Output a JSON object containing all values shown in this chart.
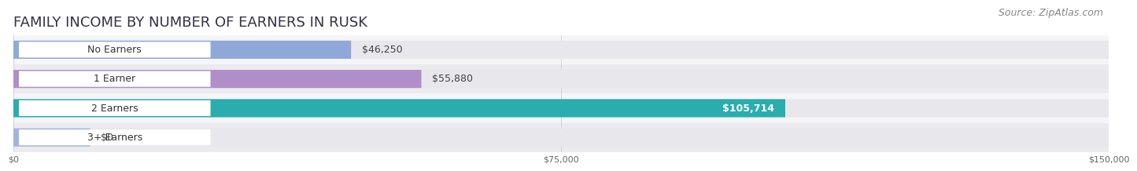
{
  "title": "FAMILY INCOME BY NUMBER OF EARNERS IN RUSK",
  "source": "Source: ZipAtlas.com",
  "categories": [
    "No Earners",
    "1 Earner",
    "2 Earners",
    "3+ Earners"
  ],
  "values": [
    46250,
    55880,
    105714,
    0
  ],
  "bar_colors": [
    "#8fa8d8",
    "#b08ec8",
    "#2aadad",
    "#a0b4e0"
  ],
  "label_colors": [
    "#333333",
    "#333333",
    "#ffffff",
    "#333333"
  ],
  "xlim": [
    0,
    150000
  ],
  "xtick_values": [
    0,
    75000,
    150000
  ],
  "xtick_labels": [
    "$0",
    "$75,000",
    "$150,000"
  ],
  "bg_color": "#ffffff",
  "bar_bg_color": "#e8e8ec",
  "bar_row_bg": "#f0f0f4",
  "title_fontsize": 13,
  "source_fontsize": 9,
  "label_fontsize": 9,
  "category_fontsize": 9
}
